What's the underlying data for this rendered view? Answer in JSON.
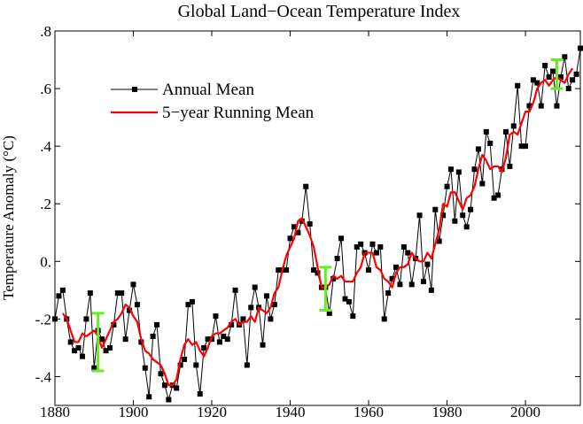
{
  "chart_data": {
    "type": "line",
    "title": "Global Land−Ocean Temperature Index",
    "y_label": "Temperature Anomaly (°C)",
    "xlim": [
      1880,
      2014
    ],
    "xticks": [
      1880,
      1900,
      1920,
      1940,
      1960,
      1980,
      2000
    ],
    "ylim": [
      -0.5,
      0.8
    ],
    "yticks": [
      {
        "value": -0.4,
        "label": "-.4"
      },
      {
        "value": -0.2,
        "label": "-.2"
      },
      {
        "value": 0,
        "label": "0."
      },
      {
        "value": 0.2,
        "label": ".2"
      },
      {
        "value": 0.4,
        "label": ".4"
      },
      {
        "value": 0.6,
        "label": ".6"
      },
      {
        "value": 0.8,
        "label": ".8"
      }
    ],
    "legend": "upper left",
    "x": [
      1880,
      1881,
      1882,
      1883,
      1884,
      1885,
      1886,
      1887,
      1888,
      1889,
      1890,
      1891,
      1892,
      1893,
      1894,
      1895,
      1896,
      1897,
      1898,
      1899,
      1900,
      1901,
      1902,
      1903,
      1904,
      1905,
      1906,
      1907,
      1908,
      1909,
      1910,
      1911,
      1912,
      1913,
      1914,
      1915,
      1916,
      1917,
      1918,
      1919,
      1920,
      1921,
      1922,
      1923,
      1924,
      1925,
      1926,
      1927,
      1928,
      1929,
      1930,
      1931,
      1932,
      1933,
      1934,
      1935,
      1936,
      1937,
      1938,
      1939,
      1940,
      1941,
      1942,
      1943,
      1944,
      1945,
      1946,
      1947,
      1948,
      1949,
      1950,
      1951,
      1952,
      1953,
      1954,
      1955,
      1956,
      1957,
      1958,
      1959,
      1960,
      1961,
      1962,
      1963,
      1964,
      1965,
      1966,
      1967,
      1968,
      1969,
      1970,
      1971,
      1972,
      1973,
      1974,
      1975,
      1976,
      1977,
      1978,
      1979,
      1980,
      1981,
      1982,
      1983,
      1984,
      1985,
      1986,
      1987,
      1988,
      1989,
      1990,
      1991,
      1992,
      1993,
      1994,
      1995,
      1996,
      1997,
      1998,
      1999,
      2000,
      2001,
      2002,
      2003,
      2004,
      2005,
      2006,
      2007,
      2008,
      2009,
      2010,
      2011,
      2012,
      2013,
      2014
    ],
    "series": [
      {
        "name": "Annual Mean",
        "color": "#000000",
        "marker": "square",
        "values": [
          -0.2,
          -0.12,
          -0.1,
          -0.2,
          -0.28,
          -0.31,
          -0.3,
          -0.33,
          -0.2,
          -0.11,
          -0.37,
          -0.24,
          -0.27,
          -0.31,
          -0.3,
          -0.22,
          -0.11,
          -0.11,
          -0.27,
          -0.17,
          -0.08,
          -0.15,
          -0.28,
          -0.37,
          -0.47,
          -0.26,
          -0.22,
          -0.39,
          -0.43,
          -0.48,
          -0.43,
          -0.44,
          -0.36,
          -0.34,
          -0.15,
          -0.14,
          -0.36,
          -0.46,
          -0.3,
          -0.27,
          -0.27,
          -0.19,
          -0.28,
          -0.26,
          -0.27,
          -0.22,
          -0.1,
          -0.22,
          -0.2,
          -0.36,
          -0.16,
          -0.09,
          -0.16,
          -0.29,
          -0.12,
          -0.2,
          -0.15,
          -0.03,
          -0.03,
          -0.03,
          0.08,
          0.12,
          0.1,
          0.14,
          0.26,
          0.13,
          -0.03,
          -0.04,
          -0.09,
          -0.09,
          -0.18,
          -0.06,
          0.01,
          0.08,
          -0.13,
          -0.14,
          -0.19,
          0.05,
          0.06,
          0.03,
          -0.03,
          0.06,
          0.03,
          0.05,
          -0.2,
          -0.11,
          -0.06,
          -0.02,
          -0.08,
          0.05,
          0.03,
          -0.08,
          0.01,
          0.16,
          -0.07,
          -0.01,
          -0.1,
          0.18,
          0.07,
          0.16,
          0.26,
          0.32,
          0.14,
          0.31,
          0.16,
          0.12,
          0.18,
          0.32,
          0.39,
          0.27,
          0.45,
          0.41,
          0.22,
          0.23,
          0.32,
          0.45,
          0.33,
          0.47,
          0.61,
          0.4,
          0.4,
          0.54,
          0.63,
          0.62,
          0.54,
          0.68,
          0.64,
          0.66,
          0.54,
          0.64,
          0.71,
          0.6,
          0.63,
          0.65,
          0.74
        ]
      },
      {
        "name": "5−year Running Mean",
        "color": "#ff0000",
        "values": [
          null,
          null,
          -0.18,
          -0.2,
          -0.24,
          -0.28,
          -0.28,
          -0.25,
          -0.26,
          -0.25,
          -0.24,
          -0.26,
          -0.3,
          -0.27,
          -0.24,
          -0.21,
          -0.2,
          -0.18,
          -0.15,
          -0.16,
          -0.19,
          -0.21,
          -0.27,
          -0.31,
          -0.32,
          -0.34,
          -0.35,
          -0.36,
          -0.39,
          -0.43,
          -0.43,
          -0.41,
          -0.34,
          -0.29,
          -0.27,
          -0.29,
          -0.28,
          -0.31,
          -0.33,
          -0.3,
          -0.26,
          -0.25,
          -0.25,
          -0.24,
          -0.23,
          -0.21,
          -0.2,
          -0.22,
          -0.21,
          -0.21,
          -0.19,
          -0.21,
          -0.16,
          -0.17,
          -0.18,
          -0.16,
          -0.11,
          -0.09,
          -0.03,
          0.02,
          0.05,
          0.08,
          0.14,
          0.15,
          0.12,
          0.09,
          0.05,
          -0.02,
          -0.09,
          -0.09,
          -0.08,
          -0.05,
          -0.06,
          -0.05,
          -0.07,
          -0.07,
          -0.07,
          -0.04,
          -0.02,
          0.03,
          0.03,
          0.03,
          -0.02,
          -0.03,
          -0.06,
          -0.07,
          -0.09,
          -0.04,
          -0.02,
          -0.02,
          -0.01,
          0.03,
          0.01,
          0.0,
          0.0,
          0.03,
          0.01,
          0.06,
          0.11,
          0.2,
          0.19,
          0.24,
          0.24,
          0.21,
          0.18,
          0.22,
          0.23,
          0.26,
          0.32,
          0.37,
          0.35,
          0.32,
          0.33,
          0.33,
          0.31,
          0.36,
          0.44,
          0.45,
          0.44,
          0.48,
          0.52,
          0.52,
          0.55,
          0.6,
          0.62,
          0.63,
          0.61,
          0.63,
          0.64,
          0.63,
          0.62,
          0.65,
          0.67,
          null,
          null
        ]
      }
    ],
    "error_bars": {
      "color": "#66ee22",
      "points": [
        {
          "x": 1891,
          "value": -0.28,
          "error": 0.1
        },
        {
          "x": 1949,
          "value": -0.095,
          "error": 0.075
        },
        {
          "x": 2008,
          "value": 0.65,
          "error": 0.05
        }
      ]
    }
  }
}
